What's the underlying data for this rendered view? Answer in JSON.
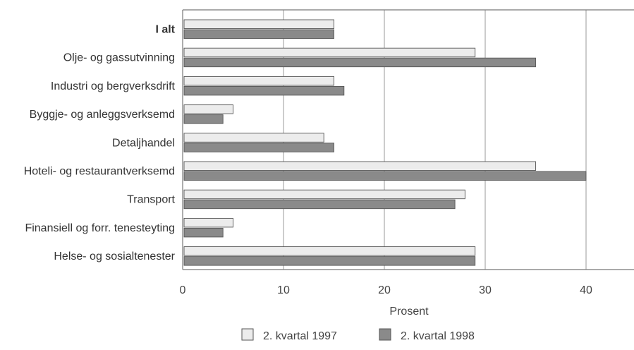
{
  "chart_data": {
    "type": "bar",
    "orientation": "horizontal",
    "title": "",
    "xlabel": "Prosent",
    "ylabel": "",
    "xlim": [
      0,
      45
    ],
    "xticks": [
      0,
      10,
      20,
      30,
      40
    ],
    "xtick_labels": [
      "0",
      "10",
      "20",
      "30",
      "40"
    ],
    "grid": "vertical",
    "legend_position": "bottom-center",
    "categories": [
      "I alt",
      "Olje- og gassutvinning",
      "Industri og bergverksdrift",
      "Byggje- og anleggsverksemd",
      "Detaljhandel",
      "Hoteli- og restaurantverksemd",
      "Transport",
      "Finansiell og forr. tenesteyting",
      "Helse- og sosialtenester"
    ],
    "bold_categories": [
      "I alt"
    ],
    "series": [
      {
        "name": "2. kvartal 1997",
        "color": "#ececec",
        "values": [
          15,
          29,
          15,
          5,
          14,
          35,
          28,
          5,
          29
        ]
      },
      {
        "name": "2. kvartal 1998",
        "color": "#8a8a8a",
        "values": [
          15,
          35,
          16,
          4,
          15,
          40,
          27,
          4,
          29
        ]
      }
    ]
  }
}
